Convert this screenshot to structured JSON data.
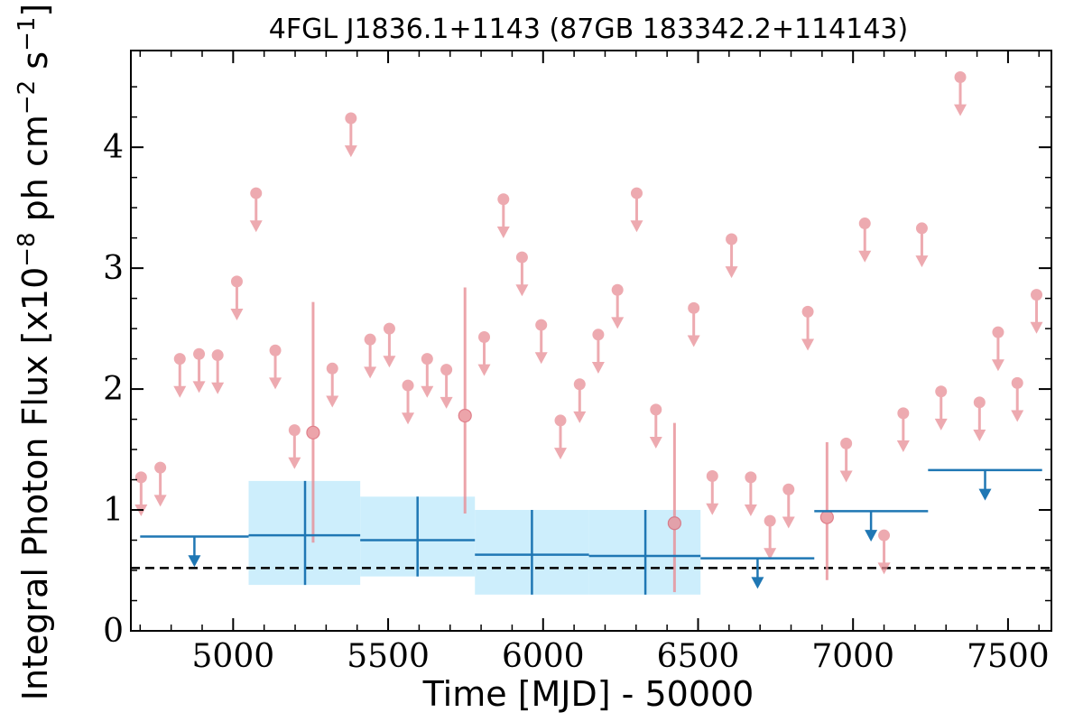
{
  "chart_data": {
    "type": "scatter",
    "title": "4FGL J1836.1+1143 (87GB 183342.2+114143)",
    "xlabel": "Time [MJD] - 50000",
    "ylabel_parts": [
      "Integral Photon Flux [x10",
      "−8",
      " ph cm",
      "−2",
      " s",
      "−1",
      "]"
    ],
    "xlim": [
      4670,
      7640
    ],
    "ylim": [
      0,
      4.8
    ],
    "x_ticks": [
      5000,
      5500,
      6000,
      6500,
      7000,
      7500
    ],
    "x_tick_labels": [
      "5000",
      "5500",
      "6000",
      "6500",
      "7000",
      "7500"
    ],
    "y_ticks": [
      0,
      1,
      2,
      3,
      4
    ],
    "y_tick_labels": [
      "0",
      "1",
      "2",
      "3",
      "4"
    ],
    "colors": {
      "short_bins": "#e88e96",
      "long_bins": "#1f77b4",
      "long_band": "#cdeefc",
      "reference_line": "#000000"
    },
    "reference_line_y": 0.52,
    "short_upper_limits": [
      {
        "x": 4703,
        "y": 1.27
      },
      {
        "x": 4765,
        "y": 1.35
      },
      {
        "x": 4828,
        "y": 2.25
      },
      {
        "x": 4890,
        "y": 2.29
      },
      {
        "x": 4950,
        "y": 2.28
      },
      {
        "x": 5012,
        "y": 2.89
      },
      {
        "x": 5074,
        "y": 3.62
      },
      {
        "x": 5136,
        "y": 2.32
      },
      {
        "x": 5198,
        "y": 1.66
      },
      {
        "x": 5320,
        "y": 2.17
      },
      {
        "x": 5380,
        "y": 4.24
      },
      {
        "x": 5442,
        "y": 2.41
      },
      {
        "x": 5504,
        "y": 2.5
      },
      {
        "x": 5564,
        "y": 2.03
      },
      {
        "x": 5626,
        "y": 2.25
      },
      {
        "x": 5688,
        "y": 2.16
      },
      {
        "x": 5810,
        "y": 2.43
      },
      {
        "x": 5872,
        "y": 3.57
      },
      {
        "x": 5932,
        "y": 3.09
      },
      {
        "x": 5994,
        "y": 2.53
      },
      {
        "x": 6056,
        "y": 1.74
      },
      {
        "x": 6118,
        "y": 2.04
      },
      {
        "x": 6178,
        "y": 2.45
      },
      {
        "x": 6240,
        "y": 2.82
      },
      {
        "x": 6302,
        "y": 3.62
      },
      {
        "x": 6364,
        "y": 1.83
      },
      {
        "x": 6486,
        "y": 2.67
      },
      {
        "x": 6546,
        "y": 1.28
      },
      {
        "x": 6608,
        "y": 3.24
      },
      {
        "x": 6670,
        "y": 1.27
      },
      {
        "x": 6732,
        "y": 0.91
      },
      {
        "x": 6792,
        "y": 1.17
      },
      {
        "x": 6854,
        "y": 2.64
      },
      {
        "x": 6978,
        "y": 1.55
      },
      {
        "x": 7038,
        "y": 3.37
      },
      {
        "x": 7100,
        "y": 0.79
      },
      {
        "x": 7162,
        "y": 1.8
      },
      {
        "x": 7222,
        "y": 3.33
      },
      {
        "x": 7284,
        "y": 1.98
      },
      {
        "x": 7346,
        "y": 4.58
      },
      {
        "x": 7408,
        "y": 1.89
      },
      {
        "x": 7468,
        "y": 2.47
      },
      {
        "x": 7530,
        "y": 2.05
      },
      {
        "x": 7592,
        "y": 2.78
      }
    ],
    "short_detections": [
      {
        "x": 5258,
        "y": 1.64,
        "ylow": 0.73,
        "yhigh": 2.72
      },
      {
        "x": 5748,
        "y": 1.78,
        "ylow": 0.97,
        "yhigh": 2.84
      },
      {
        "x": 6424,
        "y": 0.89,
        "ylow": 0.32,
        "yhigh": 1.72
      },
      {
        "x": 6916,
        "y": 0.94,
        "ylow": 0.42,
        "yhigh": 1.56
      }
    ],
    "long_upper_limits": [
      {
        "x0": 4700,
        "x1": 5050,
        "y": 0.78,
        "xc": 4875
      },
      {
        "x0": 6508,
        "x1": 6875,
        "y": 0.6,
        "xc": 6692
      },
      {
        "x0": 6875,
        "x1": 7242,
        "y": 0.99,
        "xc": 7058
      },
      {
        "x0": 7242,
        "x1": 7610,
        "y": 1.33,
        "xc": 7426
      }
    ],
    "long_detections": [
      {
        "x0": 5050,
        "x1": 5410,
        "y": 0.79,
        "xc": 5232,
        "ylow": 0.38,
        "yhigh": 1.24
      },
      {
        "x0": 5410,
        "x1": 5780,
        "y": 0.75,
        "xc": 5595,
        "ylow": 0.45,
        "yhigh": 1.11
      },
      {
        "x0": 5780,
        "x1": 6148,
        "y": 0.63,
        "xc": 5964,
        "ylow": 0.3,
        "yhigh": 1.0
      },
      {
        "x0": 6148,
        "x1": 6508,
        "y": 0.62,
        "xc": 6330,
        "ylow": 0.3,
        "yhigh": 1.0
      }
    ]
  }
}
